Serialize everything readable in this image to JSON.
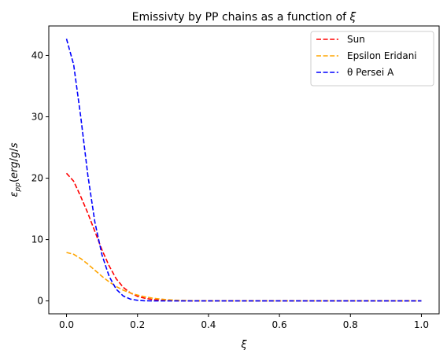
{
  "chart_data": {
    "type": "line",
    "title": "Emissivty by PP chains as a function of ξ",
    "xlabel": "ξ",
    "ylabel": "ε_pp(erg/g/s",
    "xlim": [
      -0.05,
      1.05
    ],
    "ylim": [
      -2.1,
      44.8
    ],
    "xticks": [
      0.0,
      0.2,
      0.4,
      0.6,
      0.8,
      1.0
    ],
    "xtick_labels": [
      "0.0",
      "0.2",
      "0.4",
      "0.6",
      "0.8",
      "1.0"
    ],
    "yticks": [
      0,
      10,
      20,
      30,
      40
    ],
    "ytick_labels": [
      "0",
      "10",
      "20",
      "30",
      "40"
    ],
    "grid": false,
    "legend_position": "top-right",
    "x": [
      0.0,
      0.02,
      0.04,
      0.06,
      0.08,
      0.1,
      0.12,
      0.14,
      0.16,
      0.18,
      0.2,
      0.22,
      0.24,
      0.26,
      0.28,
      0.3,
      0.32,
      0.34,
      0.36,
      0.4,
      0.5,
      0.6,
      0.7,
      0.8,
      0.9,
      1.0
    ],
    "series": [
      {
        "name": "Sun",
        "color": "#ff0000",
        "style": "dashed",
        "values": [
          20.8,
          19.5,
          17.0,
          14.3,
          11.3,
          8.3,
          5.7,
          3.6,
          2.2,
          1.3,
          0.75,
          0.45,
          0.25,
          0.14,
          0.08,
          0.04,
          0.02,
          0.01,
          0.0,
          0.0,
          0.0,
          0.0,
          0.0,
          0.0,
          0.0,
          0.0
        ]
      },
      {
        "name": "Epsilon Eridani",
        "color": "#ffa500",
        "style": "dashed",
        "values": [
          7.9,
          7.6,
          6.9,
          6.0,
          5.0,
          4.0,
          3.1,
          2.35,
          1.75,
          1.3,
          0.95,
          0.68,
          0.48,
          0.33,
          0.22,
          0.14,
          0.09,
          0.05,
          0.03,
          0.01,
          0.0,
          0.0,
          0.0,
          0.0,
          0.0,
          0.0
        ]
      },
      {
        "name": "θ Persei A",
        "color": "#0000ff",
        "style": "dashed",
        "values": [
          42.7,
          38.5,
          30.0,
          20.5,
          12.8,
          7.5,
          4.0,
          1.9,
          0.8,
          0.3,
          0.1,
          0.03,
          0.0,
          0.0,
          0.0,
          0.0,
          0.0,
          0.0,
          0.0,
          0.0,
          0.0,
          0.0,
          0.0,
          0.0,
          0.0,
          0.0
        ]
      }
    ]
  }
}
